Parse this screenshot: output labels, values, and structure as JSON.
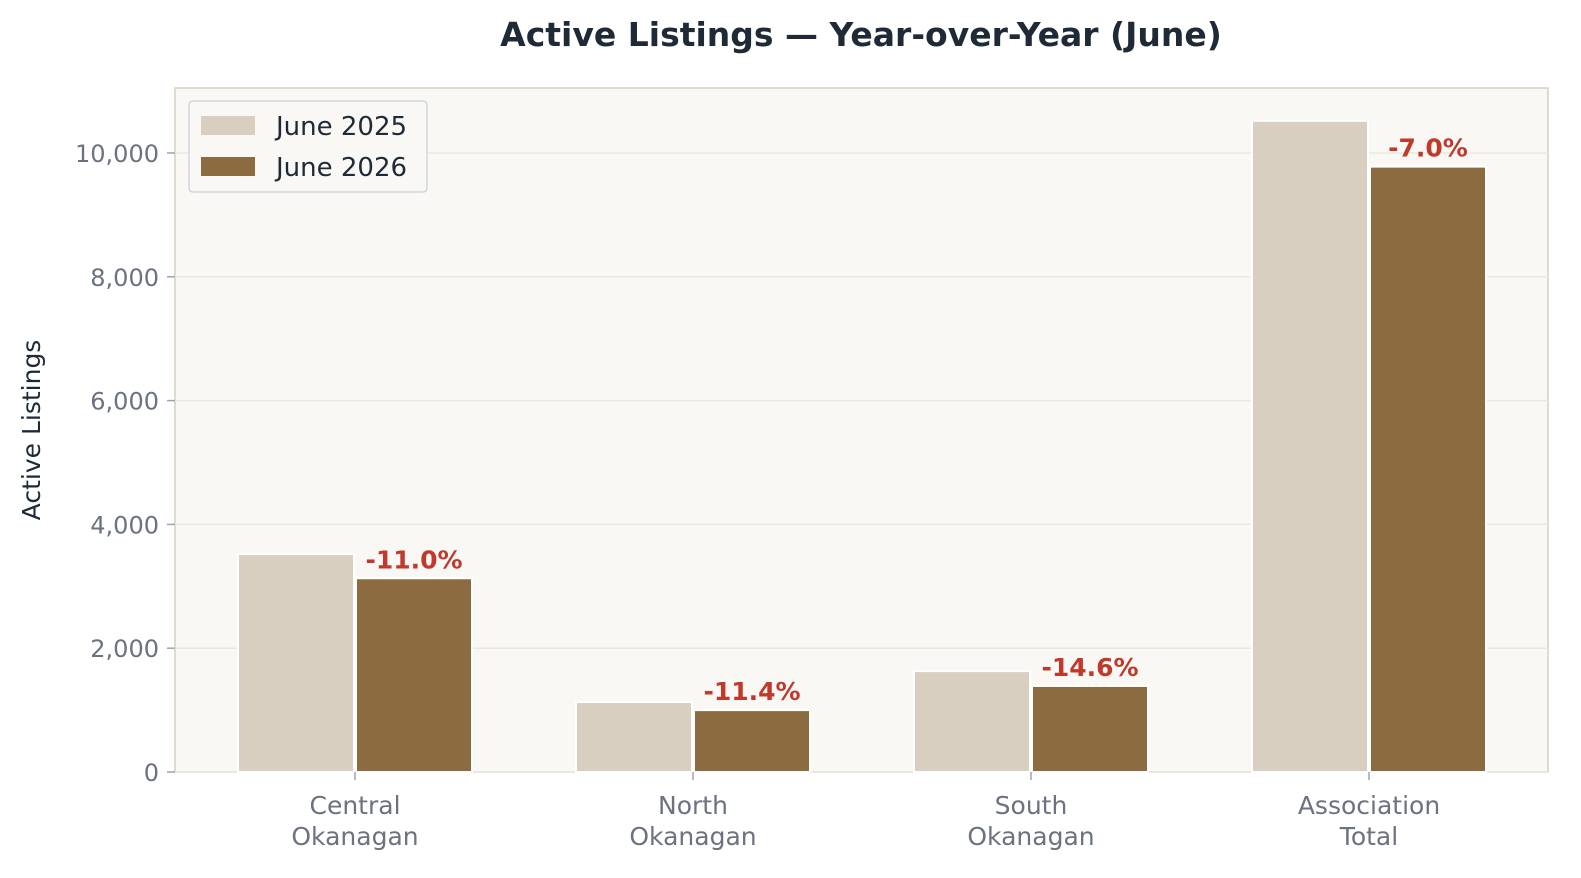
{
  "chart_data": {
    "type": "bar",
    "title": "Active Listings — Year-over-Year (June)",
    "xlabel": "",
    "ylabel": "Active Listings",
    "categories": [
      [
        "Central",
        "Okanagan"
      ],
      [
        "North",
        "Okanagan"
      ],
      [
        "South",
        "Okanagan"
      ],
      [
        "Association",
        "Total"
      ]
    ],
    "series": [
      {
        "name": "June 2025",
        "color": "#d8cfc0",
        "values": [
          3520,
          1130,
          1630,
          10520
        ]
      },
      {
        "name": "June 2026",
        "color": "#8b6b3f",
        "values": [
          3130,
          1000,
          1390,
          9780
        ]
      }
    ],
    "annotations": [
      "-11.0%",
      "-11.4%",
      "-14.6%",
      "-7.0%"
    ],
    "annotation_color": "#c0392b",
    "ylim": [
      0,
      11050
    ],
    "yticks": [
      0,
      2000,
      4000,
      6000,
      8000,
      10000
    ],
    "ytick_labels": [
      "0",
      "2,000",
      "4,000",
      "6,000",
      "8,000",
      "10,000"
    ],
    "grid": true,
    "legend_position": "top-left",
    "plot_background": "#f9f8f5",
    "frame_color": "#d8cfc0"
  }
}
